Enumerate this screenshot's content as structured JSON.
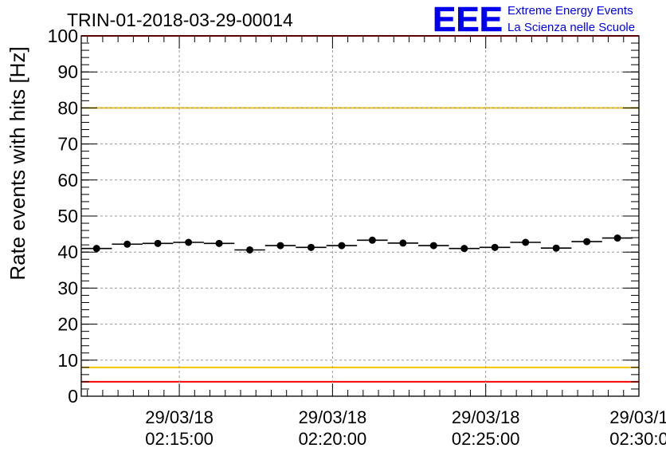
{
  "chart_data": {
    "type": "scatter",
    "title": "TRIN-01-2018-03-29-00014",
    "ylabel": "Rate events with hits [Hz]",
    "xlabel": "",
    "ylim": [
      0,
      100
    ],
    "y_ticks": [
      "0",
      "10",
      "20",
      "30",
      "40",
      "50",
      "60",
      "70",
      "80",
      "90",
      "100"
    ],
    "x_ticks": [
      {
        "date": "29/03/18",
        "time": "02:15:00",
        "minute": 15
      },
      {
        "date": "29/03/18",
        "time": "02:20:00",
        "minute": 20
      },
      {
        "date": "29/03/18",
        "time": "02:25:00",
        "minute": 25
      },
      {
        "date": "29/03/1",
        "time": "02:30:0",
        "minute": 30
      }
    ],
    "xlim_minutes": [
      11.8,
      30.0
    ],
    "bin_width_minutes": 1.0,
    "x_minutes": [
      12.3,
      13.3,
      14.3,
      15.3,
      16.3,
      17.3,
      18.3,
      19.3,
      20.3,
      21.3,
      22.3,
      23.3,
      24.3,
      25.3,
      26.3,
      27.3,
      28.3,
      29.3
    ],
    "values": [
      41.0,
      42.2,
      42.4,
      42.7,
      42.4,
      40.6,
      41.8,
      41.3,
      41.8,
      43.3,
      42.5,
      41.8,
      41.0,
      41.3,
      42.7,
      41.1,
      42.9,
      43.9
    ],
    "reference_lines": [
      {
        "y": 100,
        "color": "#ff0000"
      },
      {
        "y": 80,
        "color": "#f5c400"
      },
      {
        "y": 8,
        "color": "#f5c400"
      },
      {
        "y": 4,
        "color": "#ff0000"
      }
    ],
    "grid": true
  },
  "logo": {
    "text": "EEE",
    "line1": "Extreme Energy Events",
    "line2": "La Scienza nelle Scuole",
    "color": "#0000ee"
  }
}
